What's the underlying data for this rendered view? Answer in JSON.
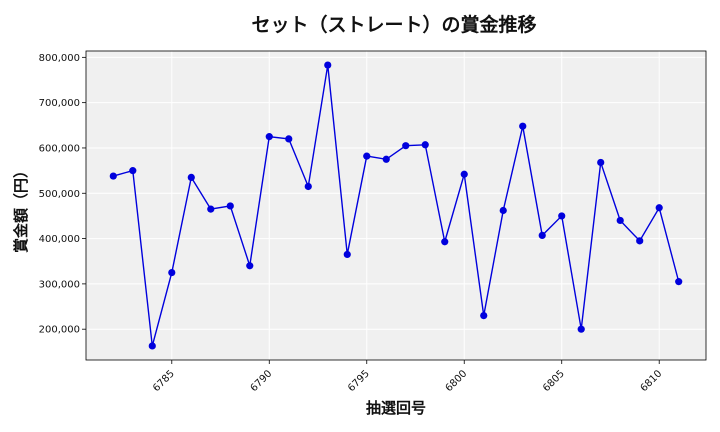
{
  "chart_data": {
    "type": "line",
    "title": "セット（ストレート）の賞金推移",
    "xlabel": "抽選回号",
    "ylabel": "賞金額（円）",
    "x": [
      6782,
      6783,
      6784,
      6785,
      6786,
      6787,
      6788,
      6789,
      6790,
      6791,
      6792,
      6793,
      6794,
      6795,
      6796,
      6797,
      6798,
      6799,
      6800,
      6801,
      6802,
      6803,
      6804,
      6805,
      6806,
      6807,
      6808,
      6809,
      6810,
      6811
    ],
    "series": [
      {
        "values": [
          538000,
          550000,
          163000,
          325000,
          535000,
          465000,
          472000,
          340000,
          625000,
          620000,
          515000,
          783000,
          365000,
          582000,
          575000,
          605000,
          607000,
          393000,
          542000,
          230000,
          462000,
          648000,
          407000,
          450000,
          200000,
          568000,
          440000,
          395000,
          468000,
          305000
        ],
        "color": "#0000dd"
      }
    ],
    "xticks": [
      6785,
      6790,
      6795,
      6800,
      6805,
      6810
    ],
    "xtick_labels": [
      "6785",
      "6790",
      "6795",
      "6800",
      "6805",
      "6810"
    ],
    "yticks": [
      200000,
      300000,
      400000,
      500000,
      600000,
      700000,
      800000
    ],
    "ytick_labels": [
      "200,000",
      "300,000",
      "400,000",
      "500,000",
      "600,000",
      "700,000",
      "800,000"
    ],
    "xlim": [
      6780.6,
      6812.4
    ],
    "ylim": [
      132000,
      814000
    ],
    "grid": true,
    "plot_background": "#f0f0f0",
    "grid_color": "#ffffff"
  }
}
